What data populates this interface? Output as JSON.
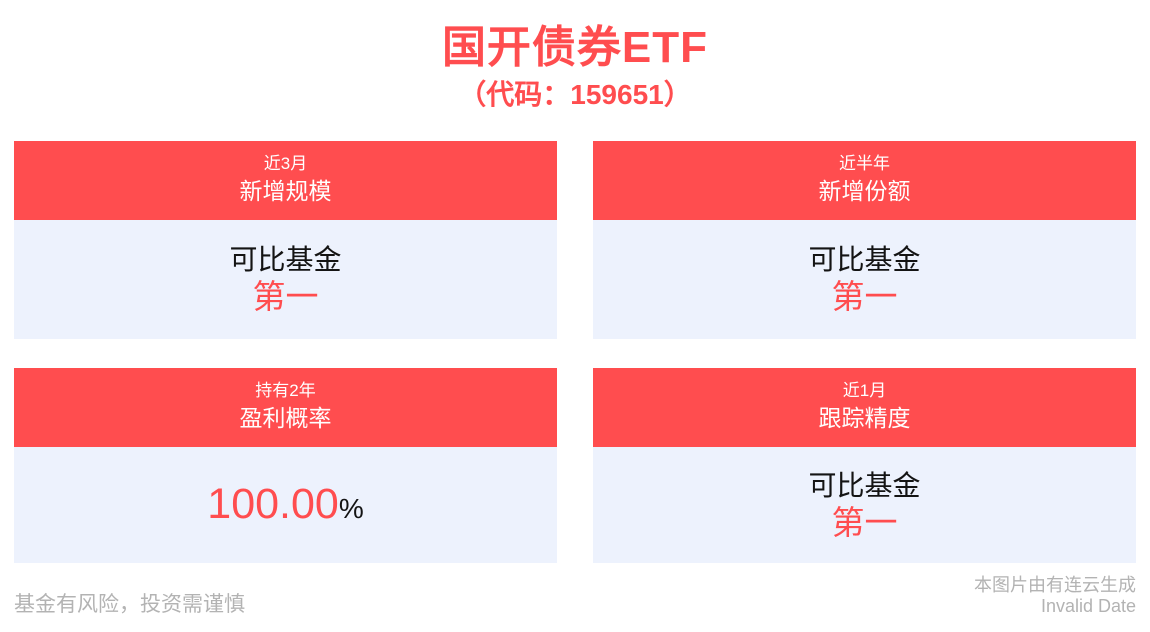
{
  "page": {
    "title": "国开债券ETF",
    "subtitle": "（代码：159651）"
  },
  "cards": [
    {
      "period": "近3月",
      "metric": "新增规模",
      "body_label": "可比基金",
      "body_value": "第一"
    },
    {
      "period": "近半年",
      "metric": "新增份额",
      "body_label": "可比基金",
      "body_value": "第一"
    },
    {
      "period": "持有2年",
      "metric": "盈利概率",
      "value_number": "100.00",
      "value_unit": "%"
    },
    {
      "period": "近1月",
      "metric": "跟踪精度",
      "body_label": "可比基金",
      "body_value": "第一"
    }
  ],
  "footer": {
    "disclaimer": "基金有风险，投资需谨慎",
    "generator": "本图片由有连云生成",
    "date": "Invalid Date"
  },
  "colors": {
    "accent_red": "#ff4d4f",
    "card_body_bg": "#edf2fd",
    "text_dark": "#141414",
    "footer_gray": "#b3b3b3"
  }
}
